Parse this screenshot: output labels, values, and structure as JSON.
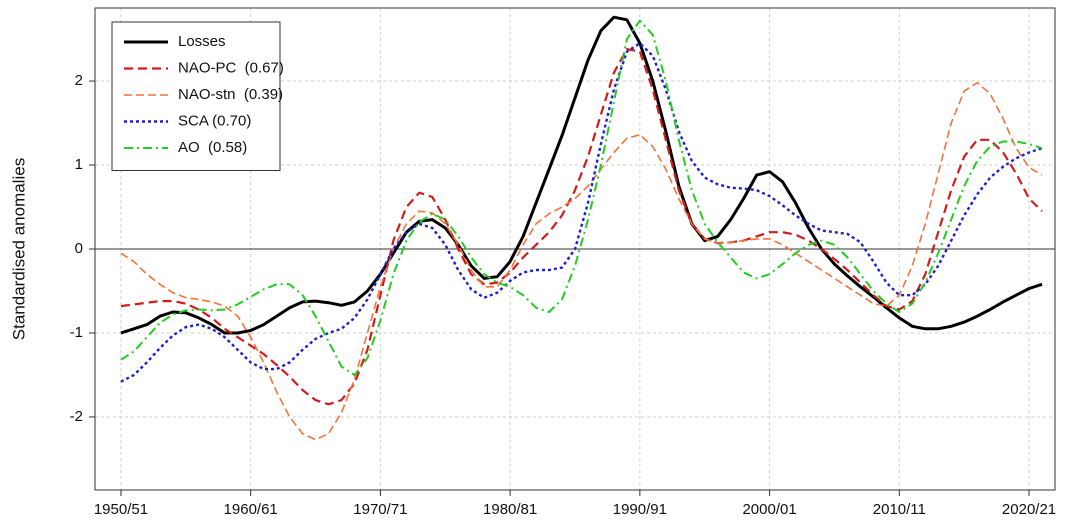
{
  "chart_data": {
    "type": "line",
    "ylabel": "Standardised anomalies",
    "x": [
      1950,
      1951,
      1952,
      1953,
      1954,
      1955,
      1956,
      1957,
      1958,
      1959,
      1960,
      1961,
      1962,
      1963,
      1964,
      1965,
      1966,
      1967,
      1968,
      1969,
      1970,
      1971,
      1972,
      1973,
      1974,
      1975,
      1976,
      1977,
      1978,
      1979,
      1980,
      1981,
      1982,
      1983,
      1984,
      1985,
      1986,
      1987,
      1988,
      1989,
      1990,
      1991,
      1992,
      1993,
      1994,
      1995,
      1996,
      1997,
      1998,
      1999,
      2000,
      2001,
      2002,
      2003,
      2004,
      2005,
      2006,
      2007,
      2008,
      2009,
      2010,
      2011,
      2012,
      2013,
      2014,
      2015,
      2016,
      2017,
      2018,
      2019,
      2020,
      2021
    ],
    "series": [
      {
        "name": "Losses",
        "color": "#000000",
        "linestyle": "solid",
        "values": [
          -1.0,
          -0.95,
          -0.9,
          -0.8,
          -0.75,
          -0.76,
          -0.82,
          -0.9,
          -1.0,
          -1.0,
          -0.97,
          -0.9,
          -0.8,
          -0.7,
          -0.63,
          -0.62,
          -0.64,
          -0.67,
          -0.63,
          -0.5,
          -0.3,
          -0.05,
          0.2,
          0.33,
          0.35,
          0.25,
          0.05,
          -0.2,
          -0.35,
          -0.33,
          -0.15,
          0.15,
          0.55,
          0.95,
          1.35,
          1.8,
          2.25,
          2.6,
          2.76,
          2.73,
          2.45,
          2.0,
          1.4,
          0.75,
          0.3,
          0.1,
          0.15,
          0.35,
          0.6,
          0.88,
          0.92,
          0.8,
          0.55,
          0.25,
          0.0,
          -0.18,
          -0.32,
          -0.45,
          -0.57,
          -0.7,
          -0.82,
          -0.92,
          -0.95,
          -0.95,
          -0.92,
          -0.87,
          -0.8,
          -0.72,
          -0.63,
          -0.55,
          -0.47,
          -0.42
        ]
      },
      {
        "name": "NAO-PC  (0.67)",
        "color": "#d01c1c",
        "linestyle": "dashed",
        "values": [
          -0.68,
          -0.66,
          -0.64,
          -0.62,
          -0.62,
          -0.65,
          -0.72,
          -0.82,
          -0.95,
          -1.05,
          -1.15,
          -1.25,
          -1.38,
          -1.52,
          -1.68,
          -1.8,
          -1.85,
          -1.8,
          -1.6,
          -1.2,
          -0.55,
          0.1,
          0.5,
          0.67,
          0.62,
          0.35,
          0.0,
          -0.3,
          -0.42,
          -0.4,
          -0.28,
          -0.1,
          0.05,
          0.2,
          0.4,
          0.7,
          1.1,
          1.6,
          2.1,
          2.38,
          2.35,
          1.9,
          1.3,
          0.7,
          0.3,
          0.12,
          0.07,
          0.08,
          0.1,
          0.15,
          0.2,
          0.2,
          0.17,
          0.1,
          0.0,
          -0.12,
          -0.25,
          -0.4,
          -0.55,
          -0.68,
          -0.72,
          -0.62,
          -0.3,
          0.2,
          0.7,
          1.1,
          1.3,
          1.3,
          1.15,
          0.9,
          0.6,
          0.45
        ]
      },
      {
        "name": "NAO-stn  (0.39)",
        "color": "#f4733a",
        "linestyle": "dashed-thin",
        "values": [
          -0.05,
          -0.15,
          -0.3,
          -0.42,
          -0.52,
          -0.58,
          -0.6,
          -0.63,
          -0.68,
          -0.8,
          -1.05,
          -1.35,
          -1.7,
          -2.0,
          -2.2,
          -2.27,
          -2.2,
          -1.95,
          -1.55,
          -1.0,
          -0.45,
          0.0,
          0.3,
          0.45,
          0.43,
          0.3,
          0.05,
          -0.25,
          -0.45,
          -0.45,
          -0.25,
          0.05,
          0.3,
          0.42,
          0.5,
          0.6,
          0.75,
          0.95,
          1.15,
          1.32,
          1.36,
          1.22,
          0.95,
          0.6,
          0.3,
          0.12,
          0.07,
          0.08,
          0.1,
          0.12,
          0.12,
          0.05,
          -0.05,
          -0.15,
          -0.25,
          -0.35,
          -0.45,
          -0.55,
          -0.65,
          -0.68,
          -0.55,
          -0.2,
          0.3,
          0.9,
          1.5,
          1.88,
          1.98,
          1.85,
          1.55,
          1.2,
          0.97,
          0.88
        ]
      },
      {
        "name": "SCA (0.70)",
        "color": "#1f1fd0",
        "linestyle": "dotted",
        "values": [
          -1.58,
          -1.5,
          -1.35,
          -1.18,
          -1.03,
          -0.93,
          -0.9,
          -0.95,
          -1.05,
          -1.2,
          -1.35,
          -1.43,
          -1.43,
          -1.35,
          -1.2,
          -1.07,
          -1.0,
          -0.95,
          -0.82,
          -0.6,
          -0.3,
          0.0,
          0.2,
          0.3,
          0.25,
          0.05,
          -0.25,
          -0.48,
          -0.58,
          -0.52,
          -0.38,
          -0.28,
          -0.25,
          -0.25,
          -0.22,
          0.0,
          0.55,
          1.25,
          1.9,
          2.35,
          2.45,
          2.3,
          1.9,
          1.4,
          1.05,
          0.85,
          0.77,
          0.73,
          0.72,
          0.7,
          0.63,
          0.52,
          0.4,
          0.3,
          0.22,
          0.2,
          0.18,
          0.08,
          -0.15,
          -0.4,
          -0.55,
          -0.55,
          -0.42,
          -0.2,
          0.1,
          0.4,
          0.65,
          0.85,
          0.98,
          1.08,
          1.15,
          1.2
        ]
      },
      {
        "name": "AO  (0.58)",
        "color": "#22cc22",
        "linestyle": "dashdot",
        "values": [
          -1.32,
          -1.22,
          -1.05,
          -0.88,
          -0.78,
          -0.73,
          -0.72,
          -0.73,
          -0.72,
          -0.66,
          -0.57,
          -0.48,
          -0.42,
          -0.42,
          -0.55,
          -0.8,
          -1.1,
          -1.4,
          -1.5,
          -1.3,
          -0.85,
          -0.3,
          0.1,
          0.32,
          0.42,
          0.35,
          0.15,
          -0.1,
          -0.3,
          -0.4,
          -0.45,
          -0.55,
          -0.7,
          -0.75,
          -0.6,
          -0.2,
          0.35,
          1.0,
          1.75,
          2.5,
          2.72,
          2.55,
          2.0,
          1.3,
          0.7,
          0.3,
          0.08,
          -0.1,
          -0.28,
          -0.35,
          -0.3,
          -0.18,
          -0.05,
          0.05,
          0.1,
          0.05,
          -0.1,
          -0.3,
          -0.5,
          -0.65,
          -0.75,
          -0.65,
          -0.4,
          -0.05,
          0.35,
          0.75,
          1.05,
          1.22,
          1.28,
          1.28,
          1.25,
          1.2
        ]
      }
    ],
    "xlim": [
      1948,
      2022
    ],
    "ylim": [
      -2.87,
      2.87
    ],
    "xticks": [
      {
        "value": 1950,
        "label": "1950/51"
      },
      {
        "value": 1960,
        "label": "1960/61"
      },
      {
        "value": 1970,
        "label": "1970/71"
      },
      {
        "value": 1980,
        "label": "1980/81"
      },
      {
        "value": 1990,
        "label": "1990/91"
      },
      {
        "value": 2000,
        "label": "2000/01"
      },
      {
        "value": 2010,
        "label": "2010/11"
      },
      {
        "value": 2020,
        "label": "2020/21"
      }
    ],
    "yticks": [
      -2,
      -1,
      0,
      1,
      2
    ],
    "grid": true,
    "legend": "upper left"
  }
}
